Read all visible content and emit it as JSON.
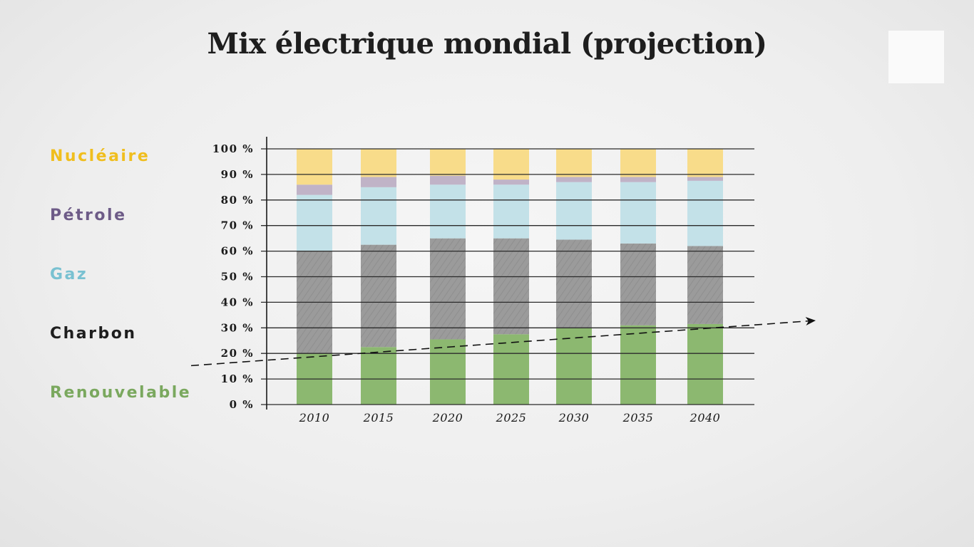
{
  "chart_data": {
    "type": "bar",
    "stacked": true,
    "title": "Mix électrique mondial (projection)",
    "categories": [
      "2010",
      "2015",
      "2020",
      "2025",
      "2030",
      "2035",
      "2040"
    ],
    "ylim": [
      0,
      100
    ],
    "yticks": [
      "0 %",
      "10 %",
      "20 %",
      "30 %",
      "40 %",
      "50 %",
      "60 %",
      "70 %",
      "80 %",
      "90 %",
      "100 %"
    ],
    "grid": true,
    "legend_position": "left",
    "series": [
      {
        "name": "Renouvelable",
        "color": "#8cb870",
        "values": [
          20,
          22.5,
          25.5,
          27.5,
          30,
          31,
          31.5
        ]
      },
      {
        "name": "Charbon",
        "color": "#9b9b9b",
        "values": [
          40,
          40,
          39.5,
          37.5,
          34.5,
          32,
          30.5
        ]
      },
      {
        "name": "Gaz",
        "color": "#c3e1e8",
        "values": [
          22,
          22.5,
          21,
          21,
          22.5,
          24,
          25.5
        ]
      },
      {
        "name": "Pétrole",
        "color": "#c0b3c7",
        "values": [
          4,
          4,
          3.5,
          2,
          2,
          2,
          1.5
        ]
      },
      {
        "name": "Nucléaire",
        "color": "#f8dc8a",
        "values": [
          14,
          11,
          10.5,
          12,
          11,
          11,
          11
        ]
      }
    ],
    "trend": {
      "from": 18,
      "to": 32,
      "style": "dashed-arrow"
    }
  },
  "legend": [
    {
      "label": "Nucléaire",
      "color": "#f0be1e"
    },
    {
      "label": "Pétrole",
      "color": "#6d5b87"
    },
    {
      "label": "Gaz",
      "color": "#79c1d1"
    },
    {
      "label": "Charbon",
      "color": "#1e1e1e"
    },
    {
      "label": "Renouvelable",
      "color": "#7aa85e"
    }
  ]
}
